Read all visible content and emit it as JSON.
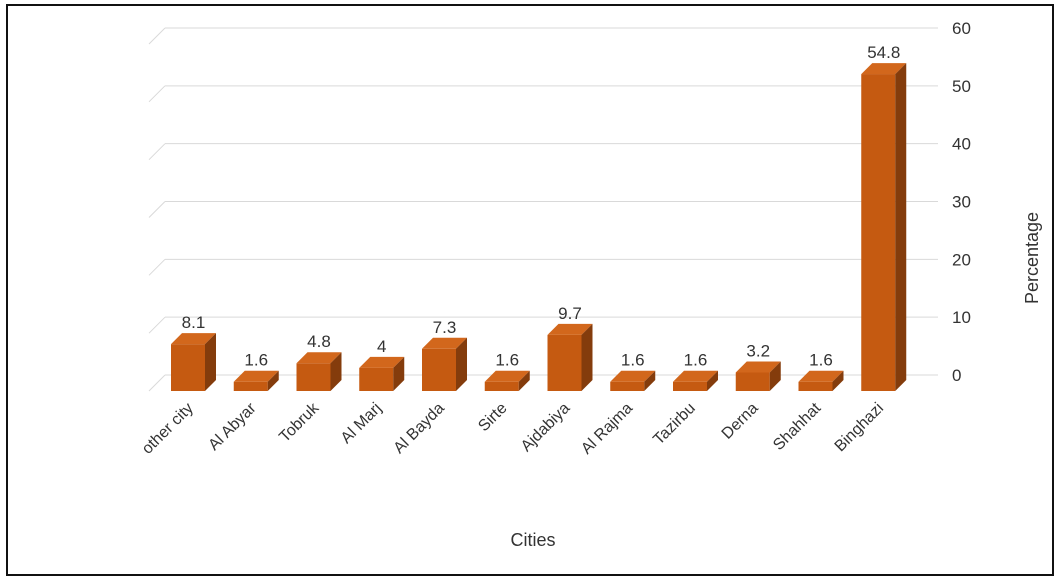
{
  "chart_data": {
    "type": "bar",
    "style": "3d-column",
    "categories": [
      "other city",
      "Al Abyar",
      "Tobruk",
      "Al Marj",
      "Al Bayda",
      "Sirte",
      "Ajdabiya",
      "Al Rajma",
      "Tazirbu",
      "Derna",
      "Shahhat",
      "Binghazi"
    ],
    "series": [
      {
        "values": [
          8.1,
          1.6,
          4.8,
          4,
          7.3,
          1.6,
          9.7,
          1.6,
          1.6,
          3.2,
          1.6,
          54.8
        ]
      }
    ],
    "data_labels": [
      "8.1",
      "1.6",
      "4.8",
      "4",
      "7.3",
      "1.6",
      "9.7",
      "1.6",
      "1.6",
      "3.2",
      "1.6",
      "54.8"
    ],
    "xlabel": "Cities",
    "ylabel": "Percentage",
    "ylim": [
      0,
      60
    ],
    "yticks": [
      "0",
      "10",
      "20",
      "30",
      "40",
      "50",
      "60"
    ],
    "y_axis_side": "right",
    "grid": true,
    "legend": "none",
    "colors": {
      "bar_front": "#c55a11",
      "bar_top": "#d2671c",
      "bar_side": "#843c0c",
      "grid": "#d9d9d9",
      "frame": "#111111"
    }
  }
}
